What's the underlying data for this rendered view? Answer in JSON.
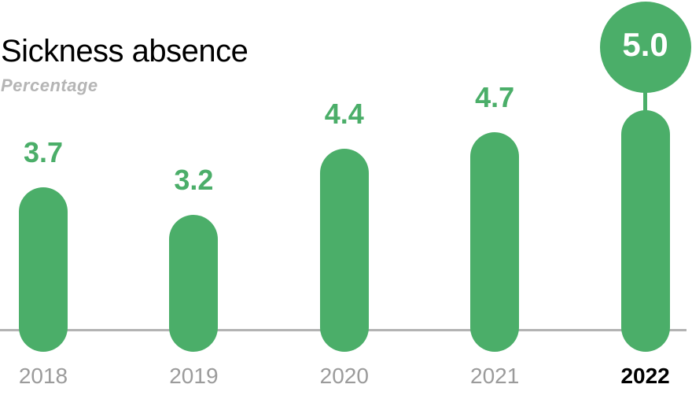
{
  "chart_data": {
    "type": "bar",
    "title": "Sickness absence",
    "subtitle": "Percentage",
    "categories": [
      "2018",
      "2019",
      "2020",
      "2021",
      "2022"
    ],
    "values": [
      3.7,
      3.2,
      4.4,
      4.7,
      5.0
    ],
    "value_labels": [
      "3.7",
      "3.2",
      "4.4",
      "4.7",
      "5.0"
    ],
    "highlight": {
      "index": 4,
      "category": "2022",
      "value_label": "5.0",
      "style": "large-circle-above-bar"
    },
    "xlabel": "",
    "ylabel": "",
    "grid": false,
    "legend": false,
    "value_label_position": "above-bars",
    "baseline_visible": true,
    "colors": {
      "bar": "#4BAE69",
      "value_label": "#4BAE69",
      "highlight_circle": "#4BAE69",
      "highlight_value_text": "#FFFFFF",
      "axis_line": "#B3B3B3",
      "category_label": "#9B9B9B",
      "highlight_category_label": "#000000",
      "title": "#000000",
      "subtitle": "#B5B5B5"
    }
  }
}
